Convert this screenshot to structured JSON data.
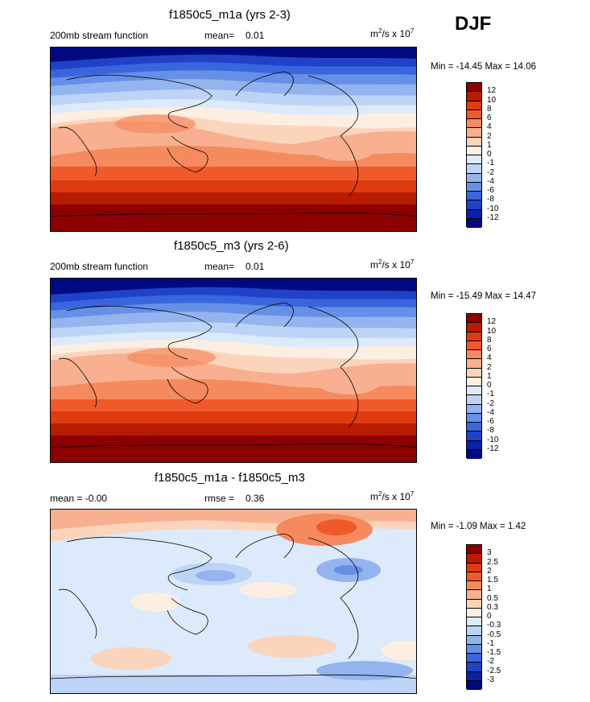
{
  "season_label": "DJF",
  "panels": [
    {
      "title": "f1850c5_m1a (yrs 2-3)",
      "left_label": "200mb stream function",
      "mean_label": "mean=",
      "mean_value": "0.01",
      "units_prefix": "m",
      "units_sup1": "2",
      "units_mid": "/s x 10",
      "units_sup2": "7",
      "minmax": "Min = -14.45 Max =  14.06",
      "colorbar_labels": [
        "12",
        "10",
        "8",
        "6",
        "4",
        "2",
        "1",
        "0",
        "-1",
        "-2",
        "-4",
        "-6",
        "-8",
        "-10",
        "-12"
      ],
      "colorbar_colors": [
        "#8c0000",
        "#b81c00",
        "#e03a10",
        "#f05a2a",
        "#f58a5e",
        "#f8b090",
        "#fbd4bc",
        "#fdeee2",
        "#ddeafb",
        "#bdd4f6",
        "#94b4ef",
        "#6690e6",
        "#3a66dd",
        "#1f42c8",
        "#0a22a8",
        "#000a80"
      ]
    },
    {
      "title": "f1850c5_m3 (yrs 2-6)",
      "left_label": "200mb stream function",
      "mean_label": "mean=",
      "mean_value": "0.01",
      "units_prefix": "m",
      "units_sup1": "2",
      "units_mid": "/s x 10",
      "units_sup2": "7",
      "minmax": "Min = -15.49 Max =  14.47",
      "colorbar_labels": [
        "12",
        "10",
        "8",
        "6",
        "4",
        "2",
        "1",
        "0",
        "-1",
        "-2",
        "-4",
        "-6",
        "-8",
        "-10",
        "-12"
      ],
      "colorbar_colors": [
        "#8c0000",
        "#b81c00",
        "#e03a10",
        "#f05a2a",
        "#f58a5e",
        "#f8b090",
        "#fbd4bc",
        "#fdeee2",
        "#ddeafb",
        "#bdd4f6",
        "#94b4ef",
        "#6690e6",
        "#3a66dd",
        "#1f42c8",
        "#0a22a8",
        "#000a80"
      ]
    },
    {
      "title": "f1850c5_m1a - f1850c5_m3",
      "left_label": "mean =  -0.00",
      "mean_label": "rmse =",
      "mean_value": "0.36",
      "units_prefix": "m",
      "units_sup1": "2",
      "units_mid": "/s x 10",
      "units_sup2": "7",
      "minmax": "Min =  -1.09 Max =  1.42",
      "colorbar_labels": [
        "3",
        "2.5",
        "2",
        "1.5",
        "1",
        "0.5",
        "0.3",
        "0",
        "-0.3",
        "-0.5",
        "-1",
        "-1.5",
        "-2",
        "-2.5",
        "-3"
      ],
      "colorbar_colors": [
        "#8c0000",
        "#b81c00",
        "#e03a10",
        "#f05a2a",
        "#f58a5e",
        "#f8b090",
        "#fbd4bc",
        "#fdeee2",
        "#ddeafb",
        "#bdd4f6",
        "#94b4ef",
        "#6690e6",
        "#3a66dd",
        "#1f42c8",
        "#0a22a8",
        "#000a80"
      ]
    }
  ]
}
